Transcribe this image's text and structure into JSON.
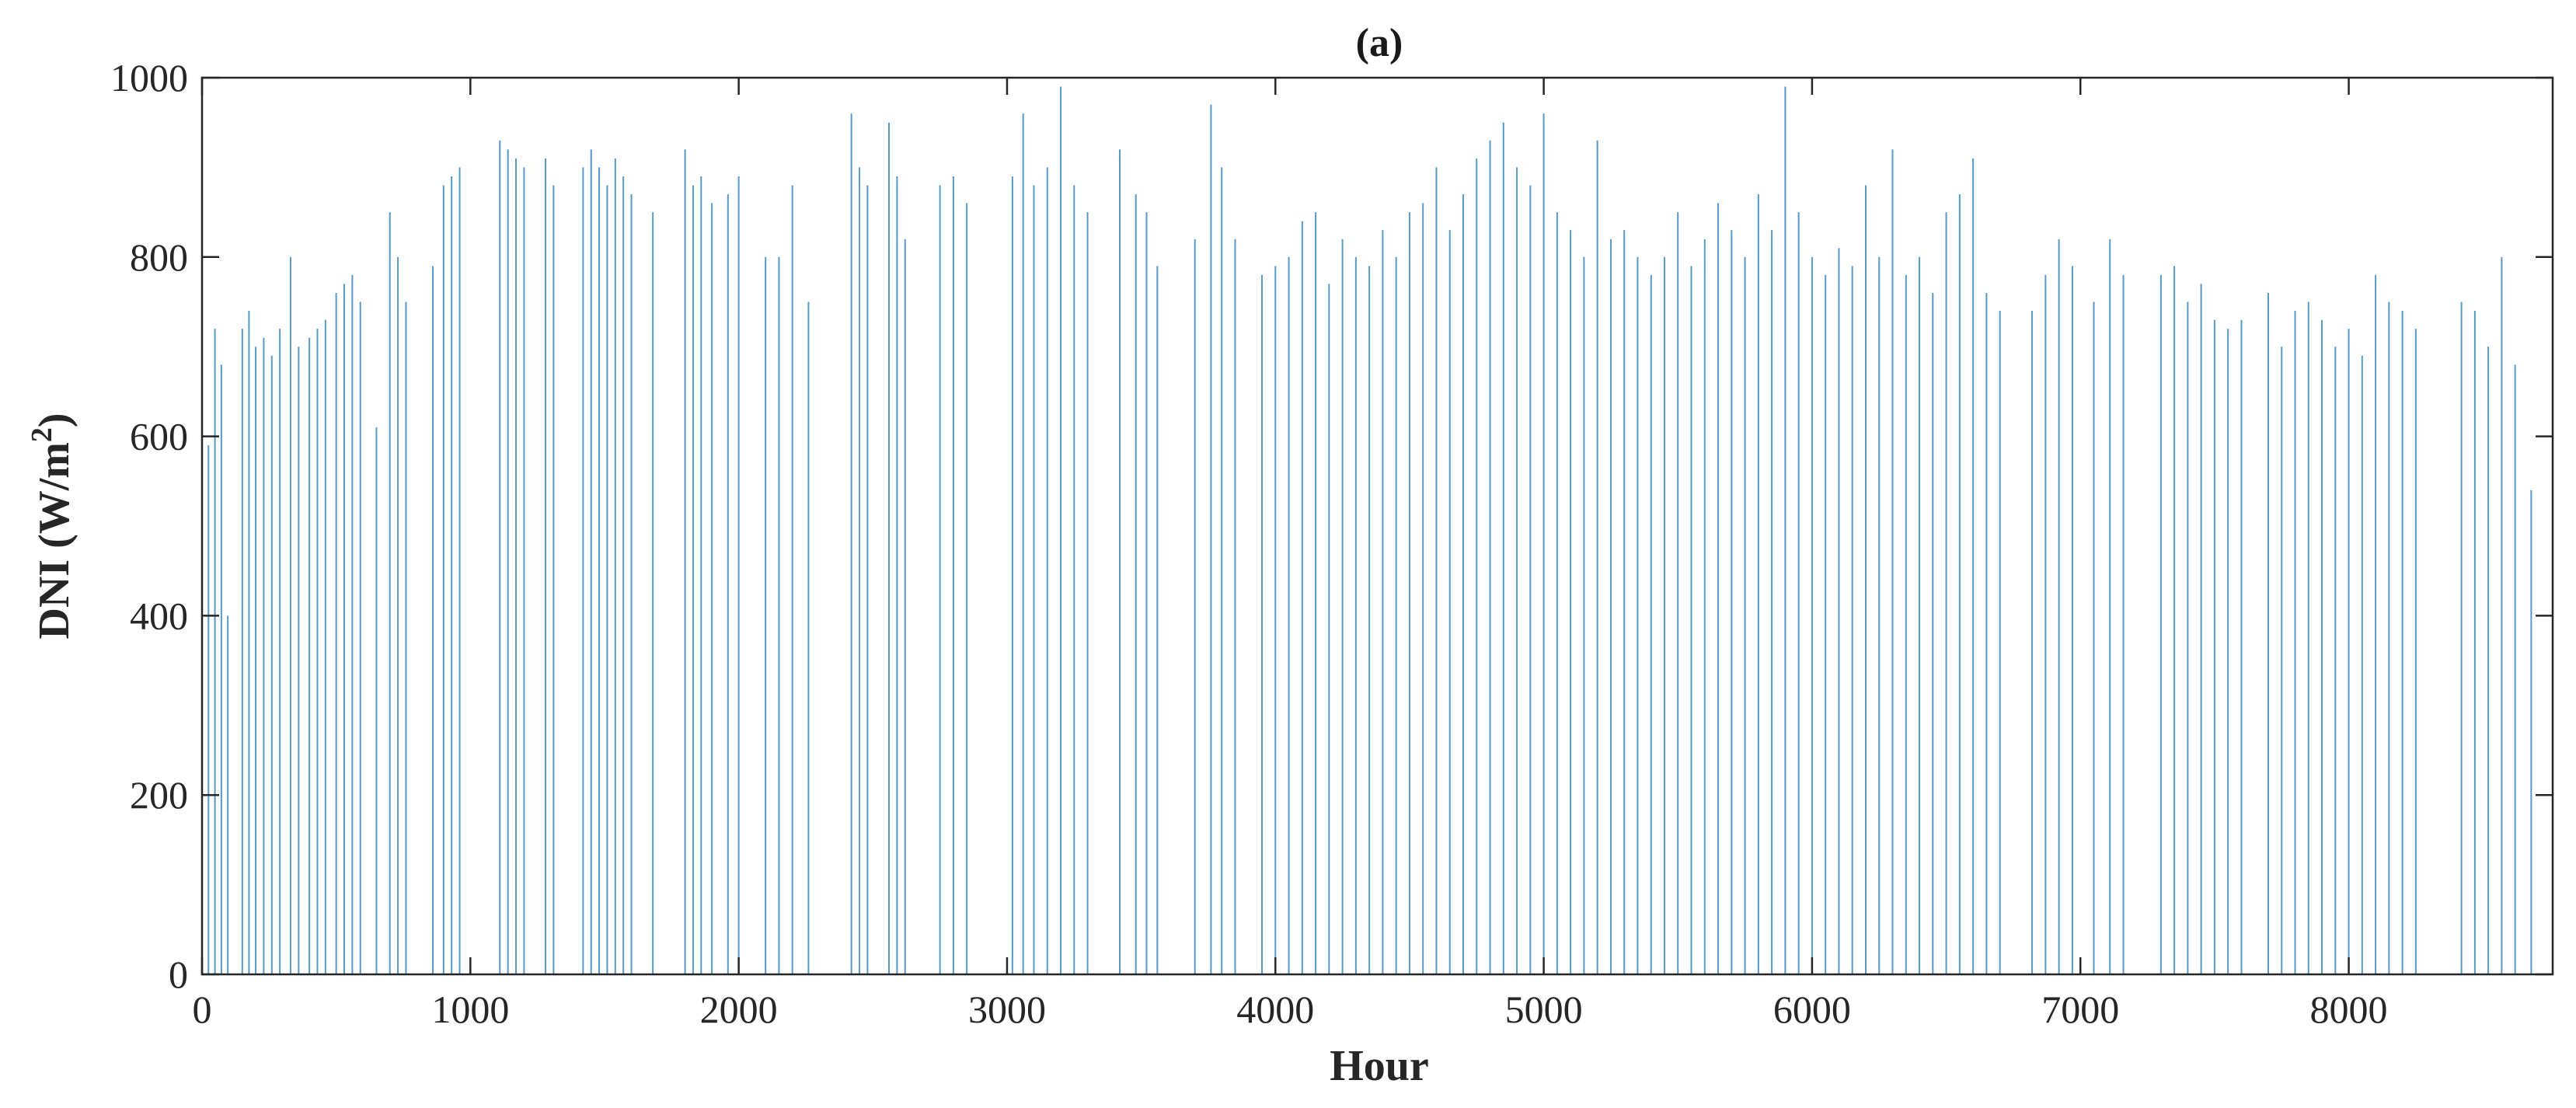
{
  "chart_data": {
    "type": "bar",
    "title": "(a)",
    "xlabel": "Hour",
    "ylabel_main": "DNI (W/m",
    "ylabel_sup": "2",
    "ylabel_close": ")",
    "xlim": [
      0,
      8760
    ],
    "ylim": [
      0,
      1000
    ],
    "xticks": [
      0,
      1000,
      2000,
      3000,
      4000,
      5000,
      6000,
      7000,
      8000
    ],
    "yticks": [
      0,
      200,
      400,
      600,
      800,
      1000
    ],
    "grid": false,
    "bar_color": "#1f77b4",
    "series": [
      {
        "description_points": [
          {
            "x": 24,
            "y": 590
          },
          {
            "x": 48,
            "y": 720
          },
          {
            "x": 72,
            "y": 680
          },
          {
            "x": 96,
            "y": 400
          },
          {
            "x": 150,
            "y": 720
          },
          {
            "x": 175,
            "y": 740
          },
          {
            "x": 200,
            "y": 700
          },
          {
            "x": 230,
            "y": 710
          },
          {
            "x": 260,
            "y": 690
          },
          {
            "x": 290,
            "y": 720
          },
          {
            "x": 330,
            "y": 800
          },
          {
            "x": 360,
            "y": 700
          },
          {
            "x": 400,
            "y": 710
          },
          {
            "x": 430,
            "y": 720
          },
          {
            "x": 460,
            "y": 730
          },
          {
            "x": 500,
            "y": 760
          },
          {
            "x": 530,
            "y": 770
          },
          {
            "x": 560,
            "y": 780
          },
          {
            "x": 590,
            "y": 750
          },
          {
            "x": 650,
            "y": 610
          },
          {
            "x": 700,
            "y": 850
          },
          {
            "x": 730,
            "y": 800
          },
          {
            "x": 760,
            "y": 750
          },
          {
            "x": 860,
            "y": 790
          },
          {
            "x": 900,
            "y": 880
          },
          {
            "x": 930,
            "y": 890
          },
          {
            "x": 960,
            "y": 900
          },
          {
            "x": 1110,
            "y": 930
          },
          {
            "x": 1140,
            "y": 920
          },
          {
            "x": 1170,
            "y": 910
          },
          {
            "x": 1200,
            "y": 900
          },
          {
            "x": 1280,
            "y": 910
          },
          {
            "x": 1310,
            "y": 880
          },
          {
            "x": 1420,
            "y": 900
          },
          {
            "x": 1450,
            "y": 920
          },
          {
            "x": 1480,
            "y": 900
          },
          {
            "x": 1510,
            "y": 880
          },
          {
            "x": 1540,
            "y": 910
          },
          {
            "x": 1570,
            "y": 890
          },
          {
            "x": 1600,
            "y": 870
          },
          {
            "x": 1680,
            "y": 850
          },
          {
            "x": 1800,
            "y": 920
          },
          {
            "x": 1830,
            "y": 880
          },
          {
            "x": 1860,
            "y": 890
          },
          {
            "x": 1900,
            "y": 860
          },
          {
            "x": 1960,
            "y": 870
          },
          {
            "x": 2000,
            "y": 890
          },
          {
            "x": 2100,
            "y": 800
          },
          {
            "x": 2150,
            "y": 800
          },
          {
            "x": 2200,
            "y": 880
          },
          {
            "x": 2260,
            "y": 750
          },
          {
            "x": 2420,
            "y": 960
          },
          {
            "x": 2450,
            "y": 900
          },
          {
            "x": 2480,
            "y": 880
          },
          {
            "x": 2560,
            "y": 950
          },
          {
            "x": 2590,
            "y": 890
          },
          {
            "x": 2620,
            "y": 820
          },
          {
            "x": 2750,
            "y": 880
          },
          {
            "x": 2800,
            "y": 890
          },
          {
            "x": 2850,
            "y": 860
          },
          {
            "x": 3020,
            "y": 890
          },
          {
            "x": 3060,
            "y": 960
          },
          {
            "x": 3100,
            "y": 880
          },
          {
            "x": 3150,
            "y": 900
          },
          {
            "x": 3200,
            "y": 990
          },
          {
            "x": 3250,
            "y": 880
          },
          {
            "x": 3300,
            "y": 850
          },
          {
            "x": 3420,
            "y": 920
          },
          {
            "x": 3480,
            "y": 870
          },
          {
            "x": 3520,
            "y": 850
          },
          {
            "x": 3560,
            "y": 790
          },
          {
            "x": 3700,
            "y": 820
          },
          {
            "x": 3760,
            "y": 970
          },
          {
            "x": 3800,
            "y": 900
          },
          {
            "x": 3850,
            "y": 820
          },
          {
            "x": 3950,
            "y": 780
          },
          {
            "x": 4000,
            "y": 790
          },
          {
            "x": 4050,
            "y": 800
          },
          {
            "x": 4100,
            "y": 840
          },
          {
            "x": 4150,
            "y": 850
          },
          {
            "x": 4200,
            "y": 770
          },
          {
            "x": 4250,
            "y": 820
          },
          {
            "x": 4300,
            "y": 800
          },
          {
            "x": 4350,
            "y": 790
          },
          {
            "x": 4400,
            "y": 830
          },
          {
            "x": 4450,
            "y": 800
          },
          {
            "x": 4500,
            "y": 850
          },
          {
            "x": 4550,
            "y": 860
          },
          {
            "x": 4600,
            "y": 900
          },
          {
            "x": 4650,
            "y": 830
          },
          {
            "x": 4700,
            "y": 870
          },
          {
            "x": 4750,
            "y": 910
          },
          {
            "x": 4800,
            "y": 930
          },
          {
            "x": 4850,
            "y": 950
          },
          {
            "x": 4900,
            "y": 900
          },
          {
            "x": 4950,
            "y": 880
          },
          {
            "x": 5000,
            "y": 960
          },
          {
            "x": 5050,
            "y": 850
          },
          {
            "x": 5100,
            "y": 830
          },
          {
            "x": 5150,
            "y": 800
          },
          {
            "x": 5200,
            "y": 930
          },
          {
            "x": 5250,
            "y": 820
          },
          {
            "x": 5300,
            "y": 830
          },
          {
            "x": 5350,
            "y": 800
          },
          {
            "x": 5400,
            "y": 780
          },
          {
            "x": 5450,
            "y": 800
          },
          {
            "x": 5500,
            "y": 850
          },
          {
            "x": 5550,
            "y": 790
          },
          {
            "x": 5600,
            "y": 820
          },
          {
            "x": 5650,
            "y": 860
          },
          {
            "x": 5700,
            "y": 830
          },
          {
            "x": 5750,
            "y": 800
          },
          {
            "x": 5800,
            "y": 870
          },
          {
            "x": 5850,
            "y": 830
          },
          {
            "x": 5900,
            "y": 990
          },
          {
            "x": 5950,
            "y": 850
          },
          {
            "x": 6000,
            "y": 800
          },
          {
            "x": 6050,
            "y": 780
          },
          {
            "x": 6100,
            "y": 810
          },
          {
            "x": 6150,
            "y": 790
          },
          {
            "x": 6200,
            "y": 880
          },
          {
            "x": 6250,
            "y": 800
          },
          {
            "x": 6300,
            "y": 920
          },
          {
            "x": 6350,
            "y": 780
          },
          {
            "x": 6400,
            "y": 800
          },
          {
            "x": 6450,
            "y": 760
          },
          {
            "x": 6500,
            "y": 850
          },
          {
            "x": 6550,
            "y": 870
          },
          {
            "x": 6600,
            "y": 910
          },
          {
            "x": 6650,
            "y": 760
          },
          {
            "x": 6700,
            "y": 740
          },
          {
            "x": 6820,
            "y": 740
          },
          {
            "x": 6870,
            "y": 780
          },
          {
            "x": 6920,
            "y": 820
          },
          {
            "x": 6970,
            "y": 790
          },
          {
            "x": 7050,
            "y": 750
          },
          {
            "x": 7110,
            "y": 820
          },
          {
            "x": 7160,
            "y": 780
          },
          {
            "x": 7300,
            "y": 780
          },
          {
            "x": 7350,
            "y": 790
          },
          {
            "x": 7400,
            "y": 750
          },
          {
            "x": 7450,
            "y": 770
          },
          {
            "x": 7500,
            "y": 730
          },
          {
            "x": 7550,
            "y": 720
          },
          {
            "x": 7600,
            "y": 730
          },
          {
            "x": 7700,
            "y": 760
          },
          {
            "x": 7750,
            "y": 700
          },
          {
            "x": 7800,
            "y": 740
          },
          {
            "x": 7850,
            "y": 750
          },
          {
            "x": 7900,
            "y": 730
          },
          {
            "x": 7950,
            "y": 700
          },
          {
            "x": 8000,
            "y": 720
          },
          {
            "x": 8050,
            "y": 690
          },
          {
            "x": 8100,
            "y": 780
          },
          {
            "x": 8150,
            "y": 750
          },
          {
            "x": 8200,
            "y": 740
          },
          {
            "x": 8250,
            "y": 720
          },
          {
            "x": 8420,
            "y": 750
          },
          {
            "x": 8470,
            "y": 740
          },
          {
            "x": 8520,
            "y": 700
          },
          {
            "x": 8570,
            "y": 800
          },
          {
            "x": 8620,
            "y": 680
          },
          {
            "x": 8680,
            "y": 540
          }
        ]
      }
    ]
  }
}
